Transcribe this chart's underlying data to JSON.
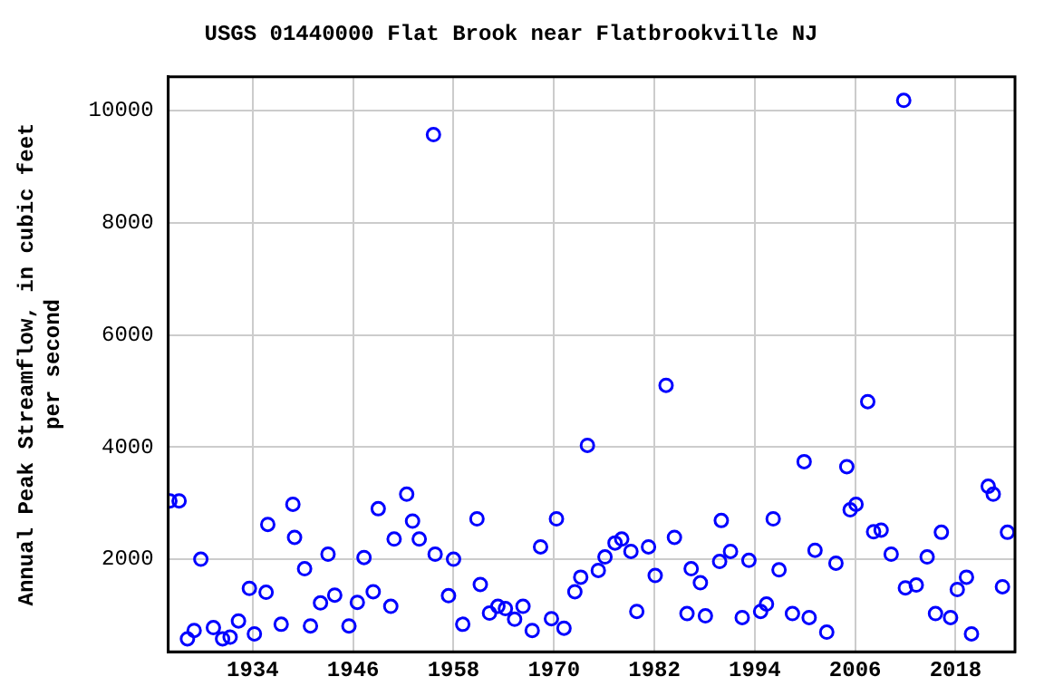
{
  "chart_data": {
    "type": "scatter",
    "title": "USGS 01440000 Flat Brook near Flatbrookville NJ",
    "ylabel": "Annual Peak Streamflow, in cubic feet\nper second",
    "x": [
      1924.1,
      1925.2,
      1926.2,
      1927.0,
      1927.8,
      1929.3,
      1930.4,
      1931.3,
      1932.3,
      1933.6,
      1934.2,
      1935.6,
      1935.8,
      1937.4,
      1938.8,
      1939.0,
      1940.2,
      1940.9,
      1942.1,
      1943.0,
      1943.8,
      1945.5,
      1946.5,
      1947.3,
      1948.4,
      1949.0,
      1950.5,
      1950.9,
      1952.4,
      1953.1,
      1953.9,
      1955.6,
      1955.8,
      1957.4,
      1958.0,
      1959.1,
      1960.8,
      1961.2,
      1962.3,
      1963.3,
      1964.2,
      1965.3,
      1966.3,
      1967.4,
      1968.4,
      1969.7,
      1970.3,
      1971.2,
      1972.5,
      1973.2,
      1974.0,
      1975.3,
      1976.1,
      1977.3,
      1978.1,
      1979.2,
      1979.9,
      1981.3,
      1982.1,
      1983.4,
      1984.4,
      1985.9,
      1986.4,
      1987.5,
      1988.1,
      1989.8,
      1990.0,
      1991.1,
      1992.5,
      1993.3,
      1994.7,
      1995.4,
      1996.2,
      1996.9,
      1998.5,
      1999.9,
      2000.5,
      2001.2,
      2002.6,
      2003.7,
      2005.0,
      2005.4,
      2006.1,
      2007.5,
      2008.2,
      2009.1,
      2010.3,
      2011.8,
      2012.0,
      2013.3,
      2014.6,
      2015.6,
      2016.3,
      2017.4,
      2018.2,
      2019.3,
      2019.9,
      2021.9,
      2022.5,
      2023.6,
      2024.2
    ],
    "series": [
      {
        "color": "#0000ff",
        "values": [
          3040,
          3040,
          580,
          730,
          2000,
          780,
          580,
          610,
          900,
          1480,
          670,
          1410,
          2620,
          840,
          2980,
          2390,
          1830,
          810,
          1220,
          2090,
          1360,
          810,
          1230,
          2030,
          1420,
          2900,
          1160,
          2360,
          3160,
          2680,
          2360,
          9570,
          2090,
          1350,
          2000,
          840,
          2720,
          1550,
          1040,
          1160,
          1120,
          930,
          1160,
          730,
          2220,
          940,
          2720,
          770,
          1420,
          1680,
          4030,
          1800,
          2040,
          2290,
          2360,
          2140,
          1070,
          2220,
          1710,
          5100,
          2390,
          1030,
          1830,
          1580,
          990,
          1960,
          2690,
          2140,
          960,
          1980,
          1070,
          1200,
          2720,
          1810,
          1030,
          3740,
          960,
          2160,
          700,
          1930,
          3650,
          2880,
          2980,
          4810,
          2490,
          2520,
          2090,
          10180,
          1490,
          1540,
          2040,
          1030,
          2480,
          960,
          1460,
          1680,
          670,
          3300,
          3160,
          1510,
          2480
        ]
      }
    ],
    "xlim": [
      1923.9,
      2025.1
    ],
    "ylim": [
      350,
      10600
    ],
    "xticks": [
      1934,
      1946,
      1958,
      1970,
      1982,
      1994,
      2006,
      2018
    ],
    "yticks": [
      2000,
      4000,
      6000,
      8000,
      10000
    ],
    "grid": true,
    "marker": "circle",
    "legend": false
  }
}
